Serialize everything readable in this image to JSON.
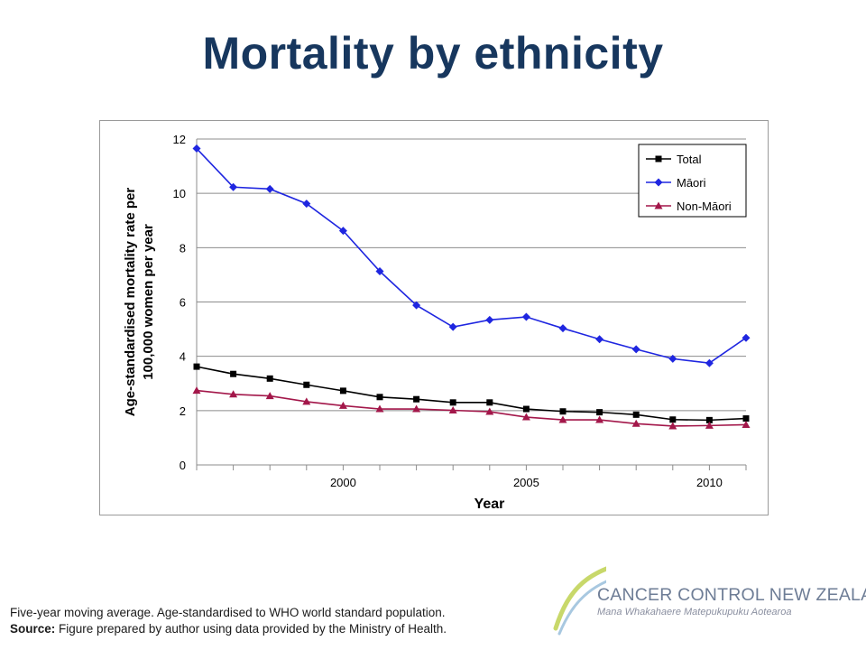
{
  "slide": {
    "title": "Mortality by ethnicity"
  },
  "footnote": {
    "line1": "Five-year moving average. Age-standardised to WHO world standard population.",
    "source_label": "Source:",
    "source_text": " Figure prepared by author using data provided by the Ministry of Health."
  },
  "logo": {
    "name": "CANCER CONTROL NEW ZEALAND",
    "tagline": "Mana Whakahaere Matepukupuku Aotearoa",
    "swoosh_colors": [
      "#c8d86a",
      "#a8c8e0"
    ]
  },
  "chart_data": {
    "type": "line",
    "xlabel": "Year",
    "ylabel": "Age-standardised mortality rate per 100,000 women per year",
    "x": [
      1996,
      1997,
      1998,
      1999,
      2000,
      2001,
      2002,
      2003,
      2004,
      2005,
      2006,
      2007,
      2008,
      2009,
      2010,
      2011
    ],
    "x_tick_labels": [
      2000,
      2005,
      2010
    ],
    "xlim": [
      1996,
      2011
    ],
    "ylim": [
      0,
      12
    ],
    "y_ticks": [
      0,
      2,
      4,
      6,
      8,
      10,
      12
    ],
    "grid": "horizontal",
    "legend_position": "top-right",
    "series": [
      {
        "name": "Total",
        "color": "#000000",
        "marker": "square",
        "values": [
          3.62,
          3.35,
          3.18,
          2.95,
          2.73,
          2.5,
          2.42,
          2.3,
          2.3,
          2.06,
          1.97,
          1.94,
          1.85,
          1.67,
          1.65,
          1.71
        ]
      },
      {
        "name": "Māori",
        "color": "#1f26e0",
        "marker": "diamond",
        "values": [
          11.65,
          10.23,
          10.16,
          9.62,
          8.62,
          7.13,
          5.88,
          5.08,
          5.34,
          5.45,
          5.03,
          4.63,
          4.26,
          3.91,
          3.75,
          4.68
        ]
      },
      {
        "name": "Non-Māori",
        "color": "#a3174a",
        "marker": "triangle",
        "values": [
          2.74,
          2.6,
          2.54,
          2.33,
          2.18,
          2.06,
          2.06,
          2.01,
          1.96,
          1.76,
          1.66,
          1.66,
          1.52,
          1.43,
          1.45,
          1.48
        ]
      }
    ]
  }
}
